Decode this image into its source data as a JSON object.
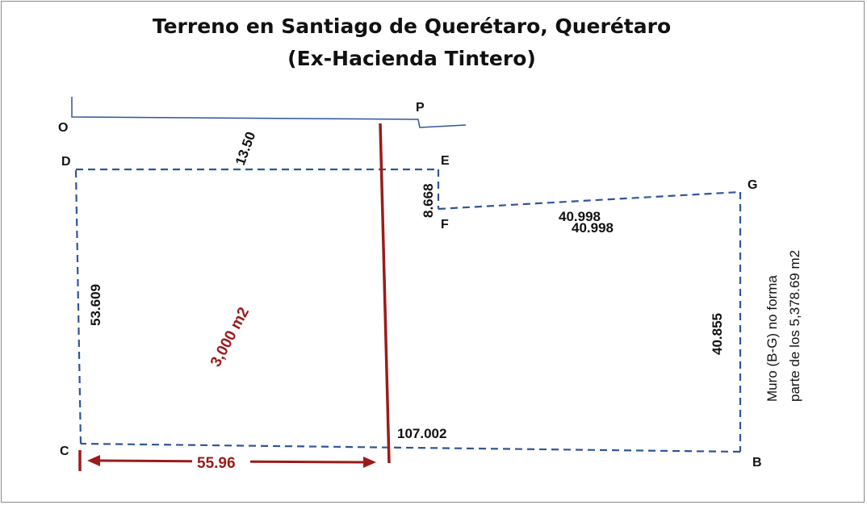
{
  "title": {
    "line1": "Terreno en Santiago de Querétaro, Querétaro",
    "line2": "(Ex-Hacienda Tintero)"
  },
  "points": {
    "O": "O",
    "P": "P",
    "D": "D",
    "E": "E",
    "F": "F",
    "G": "G",
    "C": "C",
    "B": "B"
  },
  "dimensions": {
    "top_segment": "13.50",
    "step_height": "8.668",
    "upper_right_a": "40.998",
    "upper_right_b": "40.998",
    "left_side": "53.609",
    "right_side": "40.855",
    "bottom_total": "107.002",
    "bottom_left_red": "55.96"
  },
  "area_label": "3,000 m2",
  "note": {
    "line1": "Muro (B-G) no forma",
    "line2": "parte de los 5,378.69 m2"
  },
  "colors": {
    "boundary_dashed": "#2f5597",
    "red_accent": "#9b1b1b",
    "text": "#111111"
  }
}
